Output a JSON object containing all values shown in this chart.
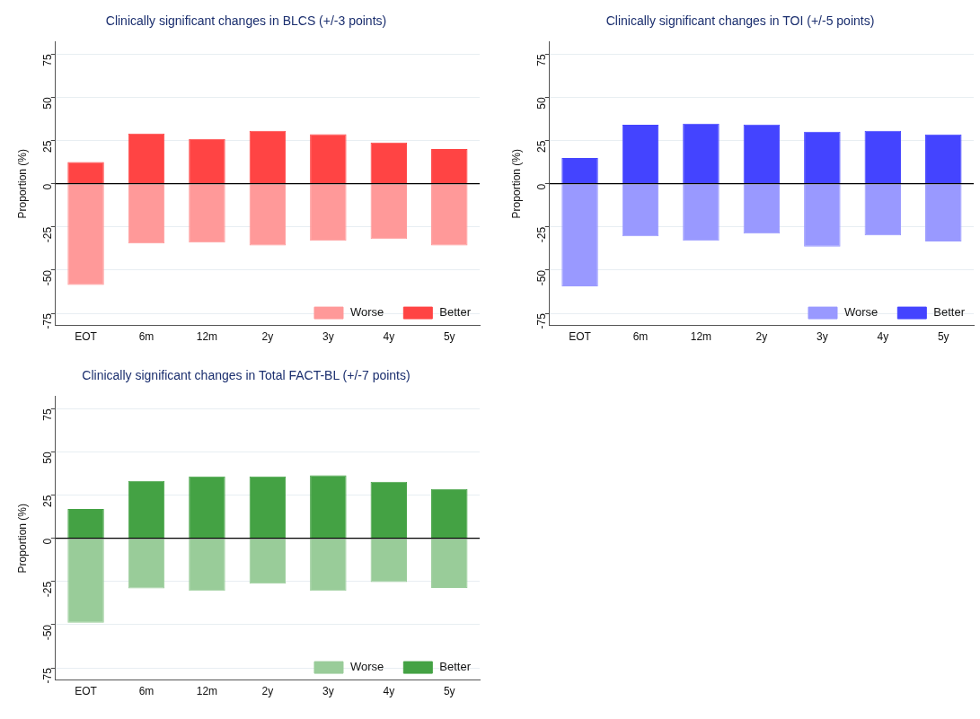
{
  "chart_data": [
    {
      "type": "bar",
      "title": "Clinically significant changes in BLCS (+/-3 points)",
      "ylabel": "Proportion (%)",
      "categories": [
        "EOT",
        "6m",
        "12m",
        "2y",
        "3y",
        "4y",
        "5y"
      ],
      "stacked": true,
      "ylim": [
        -82,
        82
      ],
      "yticks": [
        -75,
        -50,
        -25,
        0,
        25,
        50,
        75
      ],
      "grid": "y",
      "legend": "bottom right",
      "ref_lines": [
        {
          "axis": "y",
          "value": 0,
          "color": "#000000"
        }
      ],
      "series": [
        {
          "name": "Worse",
          "color": "#ff9999",
          "values": [
            -58.6,
            -34.6,
            -34.1,
            -35.7,
            -33,
            -32,
            -35.7
          ]
        },
        {
          "name": "Better",
          "color": "#ff4444",
          "values": [
            12.6,
            29,
            26,
            30.6,
            28.7,
            23.8,
            20.1
          ]
        }
      ]
    },
    {
      "type": "bar",
      "title": "Clinically significant changes in TOI (+/-5 points)",
      "ylabel": "Proportion (%)",
      "categories": [
        "EOT",
        "6m",
        "12m",
        "2y",
        "3y",
        "4y",
        "5y"
      ],
      "stacked": true,
      "ylim": [
        -82,
        82
      ],
      "yticks": [
        -75,
        -50,
        -25,
        0,
        25,
        50,
        75
      ],
      "grid": "y",
      "legend": "bottom right",
      "ref_lines": [
        {
          "axis": "y",
          "value": 0,
          "color": "#000000"
        }
      ],
      "series": [
        {
          "name": "Worse",
          "color": "#9999ff",
          "values": [
            -59.3,
            -30.4,
            -33,
            -28.8,
            -36.4,
            -29.9,
            -33.4
          ]
        },
        {
          "name": "Better",
          "color": "#4444ff",
          "values": [
            14.9,
            34.1,
            34.8,
            34.3,
            30.1,
            30.6,
            28.5
          ]
        }
      ]
    },
    {
      "type": "bar",
      "title": "Clinically significant changes in Total FACT-BL (+/-7 points)",
      "ylabel": "Proportion (%)",
      "categories": [
        "EOT",
        "6m",
        "12m",
        "2y",
        "3y",
        "4y",
        "5y"
      ],
      "stacked": true,
      "ylim": [
        -82,
        82
      ],
      "yticks": [
        -75,
        -50,
        -25,
        0,
        25,
        50,
        75
      ],
      "grid": "y",
      "legend": "bottom right",
      "ref_lines": [
        {
          "axis": "y",
          "value": 0,
          "color": "#000000"
        }
      ],
      "series": [
        {
          "name": "Worse",
          "color": "#99cc99",
          "values": [
            -48.8,
            -29,
            -30.4,
            -26.2,
            -30.4,
            -25.3,
            -28.7
          ]
        },
        {
          "name": "Better",
          "color": "#44a244",
          "values": [
            17,
            33.2,
            35.8,
            35.8,
            36.5,
            32.7,
            28.5
          ]
        }
      ]
    }
  ]
}
